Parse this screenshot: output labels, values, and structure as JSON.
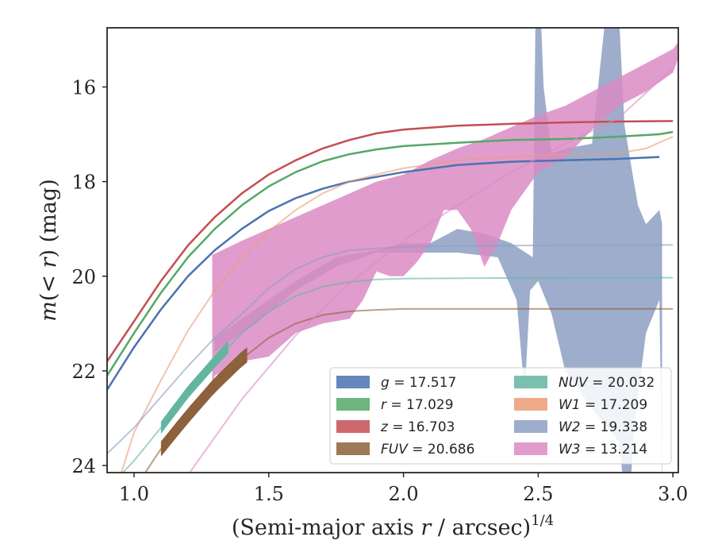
{
  "chart_data": {
    "type": "line",
    "xlabel": "(Semi-major axis r / arcsec)^1/4",
    "xlabel_parts": {
      "pre": "(Semi-major axis ",
      "var": "r",
      "mid": " / arcsec)",
      "sup": "1/4"
    },
    "ylabel": "m(< r) (mag)",
    "ylabel_parts": {
      "m": "m",
      "open": "(",
      "lt": "< ",
      "r": "r",
      "close": ")",
      "unit": " (mag)"
    },
    "xlim": [
      0.9,
      3.02
    ],
    "ylim": [
      24.15,
      14.75
    ],
    "y_inverted": true,
    "xticks": [
      1.0,
      1.5,
      2.0,
      2.5,
      3.0
    ],
    "xtick_labels": [
      "1.0",
      "1.5",
      "2.0",
      "2.5",
      "3.0"
    ],
    "yticks": [
      16,
      18,
      20,
      22,
      24
    ],
    "ytick_labels": [
      "16",
      "18",
      "20",
      "22",
      "24"
    ],
    "grid": false,
    "legend_position": "lower-right",
    "legend": [
      {
        "label": "g = 17.517",
        "sym": "g",
        "val": "17.517",
        "color": "#4c72b0"
      },
      {
        "label": "r = 17.029",
        "sym": "r",
        "val": "17.029",
        "color": "#55a868"
      },
      {
        "label": "z = 16.703",
        "sym": "z",
        "val": "16.703",
        "color": "#c44e52"
      },
      {
        "label": "FUV = 20.686",
        "sym": "FUV",
        "val": "20.686",
        "color": "#8c613c"
      },
      {
        "label": "NUV = 20.032",
        "sym": "NUV",
        "val": "20.032",
        "color": "#64b5a0"
      },
      {
        "label": "W1 = 17.209",
        "sym": "W1",
        "val": "17.209",
        "color": "#ec9b74"
      },
      {
        "label": "W2 = 19.338",
        "sym": "W2",
        "val": "19.338",
        "color": "#8c9fc2"
      },
      {
        "label": "W3 = 13.214",
        "sym": "W3",
        "val": "13.214",
        "color": "#da8bc3"
      }
    ],
    "series": [
      {
        "name": "z",
        "color": "#c44e52",
        "x": [
          0.9,
          1.0,
          1.1,
          1.2,
          1.3,
          1.4,
          1.5,
          1.6,
          1.7,
          1.8,
          1.9,
          2.0,
          2.2,
          2.4,
          2.6,
          2.8,
          3.0
        ],
        "y": [
          21.8,
          20.95,
          20.1,
          19.35,
          18.75,
          18.25,
          17.85,
          17.55,
          17.3,
          17.12,
          16.98,
          16.9,
          16.82,
          16.78,
          16.75,
          16.73,
          16.72
        ]
      },
      {
        "name": "r",
        "color": "#55a868",
        "x": [
          0.9,
          1.0,
          1.1,
          1.2,
          1.3,
          1.4,
          1.5,
          1.6,
          1.7,
          1.8,
          1.9,
          2.0,
          2.2,
          2.4,
          2.6,
          2.8,
          2.95,
          3.0
        ],
        "y": [
          22.1,
          21.2,
          20.35,
          19.6,
          19.0,
          18.5,
          18.1,
          17.8,
          17.57,
          17.42,
          17.32,
          17.25,
          17.18,
          17.12,
          17.1,
          17.05,
          17.0,
          16.95
        ]
      },
      {
        "name": "g",
        "color": "#4c72b0",
        "x": [
          0.9,
          1.0,
          1.1,
          1.2,
          1.3,
          1.4,
          1.5,
          1.6,
          1.7,
          1.8,
          1.9,
          2.0,
          2.2,
          2.4,
          2.6,
          2.8,
          2.95
        ],
        "y": [
          22.4,
          21.5,
          20.7,
          20.0,
          19.45,
          19.0,
          18.62,
          18.35,
          18.15,
          18.0,
          17.9,
          17.8,
          17.65,
          17.58,
          17.55,
          17.52,
          17.48
        ]
      },
      {
        "name": "W1",
        "color": "#ec9b74",
        "x": [
          0.95,
          1.0,
          1.1,
          1.2,
          1.3,
          1.4,
          1.5,
          1.6,
          1.7,
          1.8,
          1.9,
          2.0,
          2.2,
          2.4,
          2.6,
          2.8,
          2.9,
          3.0
        ],
        "y": [
          24.2,
          23.3,
          22.2,
          21.15,
          20.3,
          19.6,
          19.05,
          18.6,
          18.25,
          18.0,
          17.85,
          17.72,
          17.55,
          17.48,
          17.42,
          17.4,
          17.3,
          17.05
        ]
      },
      {
        "name": "W2",
        "color": "#8c9fc2",
        "x": [
          0.9,
          1.0,
          1.1,
          1.2,
          1.3,
          1.4,
          1.5,
          1.6,
          1.7,
          1.8,
          2.0,
          2.2,
          2.5,
          2.8,
          3.0
        ],
        "y": [
          23.75,
          23.2,
          22.55,
          21.9,
          21.3,
          20.8,
          20.25,
          19.85,
          19.6,
          19.45,
          19.38,
          19.36,
          19.35,
          19.34,
          19.34
        ]
      },
      {
        "name": "NUV",
        "color": "#64b5a0",
        "x": [
          0.95,
          1.0,
          1.1,
          1.2,
          1.3,
          1.4,
          1.5,
          1.6,
          1.7,
          1.8,
          1.9,
          2.0,
          2.3,
          2.6,
          3.0
        ],
        "y": [
          24.2,
          23.9,
          23.2,
          22.45,
          21.8,
          21.2,
          20.75,
          20.42,
          20.22,
          20.12,
          20.07,
          20.05,
          20.04,
          20.03,
          20.03
        ]
      },
      {
        "name": "FUV",
        "color": "#8c613c",
        "x": [
          1.0,
          1.1,
          1.2,
          1.3,
          1.4,
          1.5,
          1.6,
          1.7,
          1.8,
          1.9,
          2.0,
          2.3,
          2.6,
          3.0
        ],
        "y": [
          24.5,
          23.65,
          22.95,
          22.3,
          21.75,
          21.3,
          21.0,
          20.82,
          20.74,
          20.71,
          20.69,
          20.69,
          20.69,
          20.69
        ]
      },
      {
        "name": "W3",
        "color": "#da8bc3",
        "x": [
          1.2,
          1.4,
          1.6,
          1.8,
          2.0,
          2.2,
          2.4,
          2.6,
          2.8,
          3.0
        ],
        "y": [
          24.2,
          22.6,
          21.25,
          20.15,
          19.25,
          18.5,
          17.8,
          17.2,
          16.65,
          15.6
        ]
      }
    ],
    "bands": [
      {
        "name": "W2",
        "color": "#8c9fc2",
        "opacity": 0.85,
        "upper_x": [
          1.3,
          1.45,
          1.6,
          1.75,
          1.9,
          2.0,
          2.1,
          2.2,
          2.3,
          2.4,
          2.48,
          2.49,
          2.51,
          2.52,
          2.55,
          2.6,
          2.7,
          2.75,
          2.8,
          2.82,
          2.84,
          2.87,
          2.9,
          2.95,
          2.96
        ],
        "upper_y": [
          21.3,
          20.7,
          20.1,
          19.6,
          19.45,
          19.3,
          19.3,
          19.0,
          19.1,
          19.3,
          19.6,
          14.5,
          14.5,
          16.0,
          17.4,
          17.3,
          17.2,
          14.5,
          14.5,
          16.8,
          17.5,
          18.5,
          18.9,
          18.6,
          18.9
        ],
        "lower_x": [
          2.96,
          2.95,
          2.9,
          2.86,
          2.84,
          2.82,
          2.8,
          2.7,
          2.6,
          2.55,
          2.5,
          2.47,
          2.45,
          2.42,
          2.35,
          2.2,
          2.0,
          1.9,
          1.75,
          1.6,
          1.45,
          1.3
        ],
        "lower_y": [
          24.6,
          20.5,
          21.2,
          23.0,
          24.6,
          24.6,
          23.5,
          22.8,
          22.0,
          20.8,
          20.1,
          20.3,
          22.5,
          20.5,
          19.6,
          19.5,
          19.5,
          19.5,
          19.8,
          20.3,
          21.0,
          21.6
        ]
      },
      {
        "name": "W3",
        "color": "#da8bc3",
        "opacity": 0.85,
        "upper_x": [
          1.29,
          1.4,
          1.5,
          1.6,
          1.7,
          1.8,
          1.9,
          2.0,
          2.1,
          2.2,
          2.3,
          2.4,
          2.5,
          2.6,
          2.7,
          2.8,
          2.9,
          3.0,
          3.02
        ],
        "upper_y": [
          19.55,
          19.25,
          19.0,
          18.75,
          18.5,
          18.25,
          18.0,
          17.85,
          17.55,
          17.3,
          17.1,
          16.85,
          16.6,
          16.4,
          16.1,
          15.8,
          15.5,
          15.2,
          15.05
        ],
        "lower_x": [
          3.02,
          3.0,
          2.9,
          2.8,
          2.7,
          2.6,
          2.5,
          2.45,
          2.4,
          2.35,
          2.3,
          2.25,
          2.2,
          2.15,
          2.1,
          2.05,
          2.0,
          1.95,
          1.9,
          1.85,
          1.8,
          1.7,
          1.6,
          1.5,
          1.4,
          1.3,
          1.29
        ],
        "lower_y": [
          15.4,
          15.7,
          16.1,
          16.4,
          16.9,
          17.5,
          17.8,
          18.2,
          18.6,
          19.3,
          19.8,
          19.0,
          18.6,
          18.6,
          19.3,
          19.7,
          20.0,
          20.0,
          19.9,
          20.5,
          20.9,
          21.0,
          21.2,
          21.7,
          21.8,
          22.1,
          22.3
        ]
      }
    ],
    "thick_segments": [
      {
        "name": "NUV-inner",
        "color": "#64b5a0",
        "x_range": [
          1.1,
          1.35
        ],
        "half_width": 0.13
      },
      {
        "name": "FUV-inner",
        "color": "#8c613c",
        "x_range": [
          1.1,
          1.42
        ],
        "half_width": 0.16
      }
    ]
  }
}
